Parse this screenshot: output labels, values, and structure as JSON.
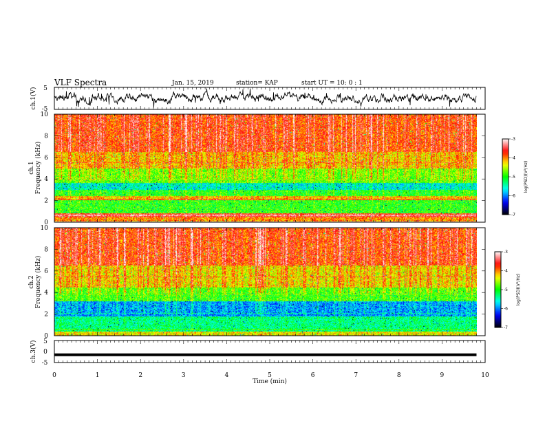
{
  "header": {
    "title": "VLF Spectra",
    "date": "Jan. 15, 2019",
    "station": "station= KAP",
    "start": "start UT = 10: 0 : 1"
  },
  "colors": {
    "spectrogram_dominant": "#f2d21c",
    "wave_line": "#000000",
    "colormap": [
      "#000000",
      "#0000ff",
      "#00ffff",
      "#00ff00",
      "#ffff00",
      "#ff0000",
      "#ffffff"
    ]
  },
  "chart_data": [
    {
      "type": "line",
      "name": "ch1-waveform",
      "ylabel": "ch.1(V)",
      "ylim": [
        -5,
        5
      ],
      "yticks": [
        "5",
        "-5"
      ],
      "xlim": [
        0,
        10
      ],
      "description_level": "noisy signal near 0 V",
      "mean": 0
    },
    {
      "type": "heatmap",
      "name": "ch1-spectrogram",
      "ylabel_channel": "ch.1",
      "ylabel": "Frequency (kHz)",
      "ylim": [
        0,
        10
      ],
      "yticks": [
        "0",
        "2",
        "4",
        "6",
        "8",
        "10"
      ],
      "xlim": [
        0,
        9.8
      ],
      "colorbar": {
        "label": "log(PSD)(V²/Hz)",
        "range": [
          -7,
          -3
        ],
        "ticks": [
          "-3",
          "-4",
          "-5",
          "-6",
          "-7"
        ]
      },
      "bands": [
        {
          "from": 0,
          "to": 0.4,
          "level": -4.1
        },
        {
          "from": 0.4,
          "to": 0.8,
          "level": -3.7
        },
        {
          "from": 0.8,
          "to": 2.0,
          "level": -5.0
        },
        {
          "from": 2.0,
          "to": 2.4,
          "level": -4.3
        },
        {
          "from": 2.4,
          "to": 3.0,
          "level": -5.1
        },
        {
          "from": 3.0,
          "to": 3.6,
          "level": -5.7
        },
        {
          "from": 3.6,
          "to": 5.0,
          "level": -4.9
        },
        {
          "from": 5.0,
          "to": 6.5,
          "level": -4.4
        },
        {
          "from": 6.5,
          "to": 10.0,
          "level": -4.0
        }
      ]
    },
    {
      "type": "heatmap",
      "name": "ch2-spectrogram",
      "ylabel_channel": "ch.2",
      "ylabel": "Frequency (kHz)",
      "ylim": [
        0,
        10
      ],
      "yticks": [
        "0",
        "2",
        "4",
        "6",
        "8",
        "10"
      ],
      "xlim": [
        0,
        9.8
      ],
      "colorbar": {
        "label": "log(PSD)(V²/Hz)",
        "range": [
          -7,
          -3
        ],
        "ticks": [
          "-3",
          "-4",
          "-5",
          "-6",
          "-7"
        ]
      },
      "bands": [
        {
          "from": 0,
          "to": 0.4,
          "level": -4.4
        },
        {
          "from": 0.4,
          "to": 1.8,
          "level": -5.4
        },
        {
          "from": 1.8,
          "to": 3.2,
          "level": -6.0
        },
        {
          "from": 3.2,
          "to": 4.5,
          "level": -5.0
        },
        {
          "from": 4.5,
          "to": 6.5,
          "level": -4.5
        },
        {
          "from": 6.5,
          "to": 10.0,
          "level": -4.0
        }
      ]
    },
    {
      "type": "line",
      "name": "ch3-waveform",
      "ylabel": "ch.3(V)",
      "ylim": [
        -5,
        5
      ],
      "yticks": [
        "5",
        "0",
        "-5"
      ],
      "xlim": [
        0,
        9.8
      ],
      "level": -1.5
    }
  ],
  "xaxis": {
    "label": "Time (min)",
    "ticks": [
      "0",
      "1",
      "2",
      "3",
      "4",
      "5",
      "6",
      "7",
      "8",
      "9",
      "10"
    ],
    "range": [
      0,
      10
    ]
  }
}
